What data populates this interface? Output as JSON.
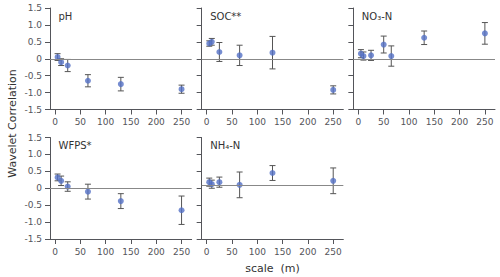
{
  "chart_data": [
    {
      "type": "scatter",
      "title": "pH",
      "x": [
        5,
        12,
        25,
        65,
        130,
        250
      ],
      "values": [
        0.05,
        -0.1,
        -0.2,
        -0.65,
        -0.75,
        -0.9
      ],
      "yerr_lo": [
        0.1,
        0.1,
        0.18,
        0.18,
        0.2,
        0.12
      ],
      "yerr_hi": [
        0.1,
        0.1,
        0.18,
        0.18,
        0.2,
        0.12
      ],
      "hline": 0.0,
      "xlim": [
        -10,
        270
      ],
      "xticks": [
        0,
        50,
        100,
        150,
        200,
        250
      ],
      "ylim": [
        -1.5,
        1.5
      ],
      "yticks": [
        -1.5,
        {
          "value": -1.0,
          "label": "-1.0"
        },
        -0.5,
        0,
        0.5,
        {
          "value": 1.0,
          "label": "1.0"
        },
        1.5
      ],
      "grid": false,
      "ylabel": "Wavelet Correlation",
      "xlabel": "scale  (m)"
    },
    {
      "type": "scatter",
      "title": "SOC**",
      "x": [
        5,
        10,
        25,
        65,
        130,
        250
      ],
      "values": [
        0.45,
        0.5,
        0.2,
        0.1,
        0.18,
        -0.92
      ],
      "yerr_lo": [
        0.08,
        0.1,
        0.28,
        0.3,
        0.48,
        0.12
      ],
      "yerr_hi": [
        0.08,
        0.1,
        0.28,
        0.3,
        0.48,
        0.12
      ],
      "hline": 0.0,
      "xlim": [
        -10,
        270
      ],
      "xticks": [
        0,
        50,
        100,
        150,
        200,
        250
      ],
      "ylim": [
        -1.5,
        1.5
      ],
      "yticks": [
        -1.5,
        {
          "value": -1.0,
          "label": "-1.0"
        },
        -0.5,
        0,
        0.5,
        {
          "value": 1.0,
          "label": "1.0"
        },
        1.5
      ],
      "grid": false,
      "tick_labels": "x"
    },
    {
      "type": "scatter",
      "title": "NO₃-N",
      "x": [
        5,
        10,
        25,
        50,
        65,
        130,
        250
      ],
      "values": [
        0.15,
        0.08,
        0.1,
        0.42,
        0.08,
        0.62,
        0.75
      ],
      "yerr_lo": [
        0.12,
        0.12,
        0.15,
        0.25,
        0.3,
        0.2,
        0.32
      ],
      "yerr_hi": [
        0.12,
        0.12,
        0.15,
        0.25,
        0.3,
        0.2,
        0.32
      ],
      "hline": 0.0,
      "xlim": [
        -10,
        270
      ],
      "xticks": [
        0,
        50,
        100,
        150,
        200,
        250
      ],
      "ylim": [
        -1.5,
        1.5
      ],
      "yticks": [
        -1.5,
        {
          "value": -1.0,
          "label": "-1.0"
        },
        -0.5,
        0,
        0.5,
        {
          "value": 1.0,
          "label": "1.0"
        },
        1.5
      ],
      "grid": false,
      "tick_labels": "x"
    },
    {
      "type": "scatter",
      "title": "WFPS*",
      "x": [
        5,
        12,
        25,
        65,
        130,
        250
      ],
      "values": [
        0.32,
        0.22,
        0.05,
        -0.1,
        -0.38,
        -0.65
      ],
      "yerr_lo": [
        0.1,
        0.14,
        0.14,
        0.22,
        0.22,
        0.42
      ],
      "yerr_hi": [
        0.1,
        0.14,
        0.14,
        0.22,
        0.22,
        0.42
      ],
      "hline": 0.0,
      "xlim": [
        -10,
        270
      ],
      "xticks": [
        0,
        50,
        100,
        150,
        200,
        250
      ],
      "ylim": [
        -1.5,
        1.5
      ],
      "yticks": [
        -1.5,
        {
          "value": -1.0,
          "label": "-1.0"
        },
        -0.5,
        0,
        0.5,
        {
          "value": 1.0,
          "label": "1.0"
        },
        1.5
      ],
      "grid": false
    },
    {
      "type": "scatter",
      "title": "NH₄-N",
      "x": [
        5,
        10,
        25,
        65,
        130,
        250
      ],
      "values": [
        0.18,
        0.12,
        0.18,
        0.1,
        0.45,
        0.22
      ],
      "yerr_lo": [
        0.12,
        0.12,
        0.15,
        0.38,
        0.22,
        0.38
      ],
      "yerr_hi": [
        0.12,
        0.12,
        0.15,
        0.38,
        0.22,
        0.38
      ],
      "hline": 0.08,
      "xlim": [
        -10,
        270
      ],
      "xticks": [
        0,
        50,
        100,
        150,
        200,
        250
      ],
      "ylim": [
        -1.5,
        1.5
      ],
      "yticks": [
        -1.5,
        {
          "value": -1.0,
          "label": "-1.0"
        },
        -0.5,
        0,
        0.5,
        {
          "value": 1.0,
          "label": "1.0"
        },
        1.5
      ],
      "grid": false,
      "tick_labels": "x"
    }
  ]
}
